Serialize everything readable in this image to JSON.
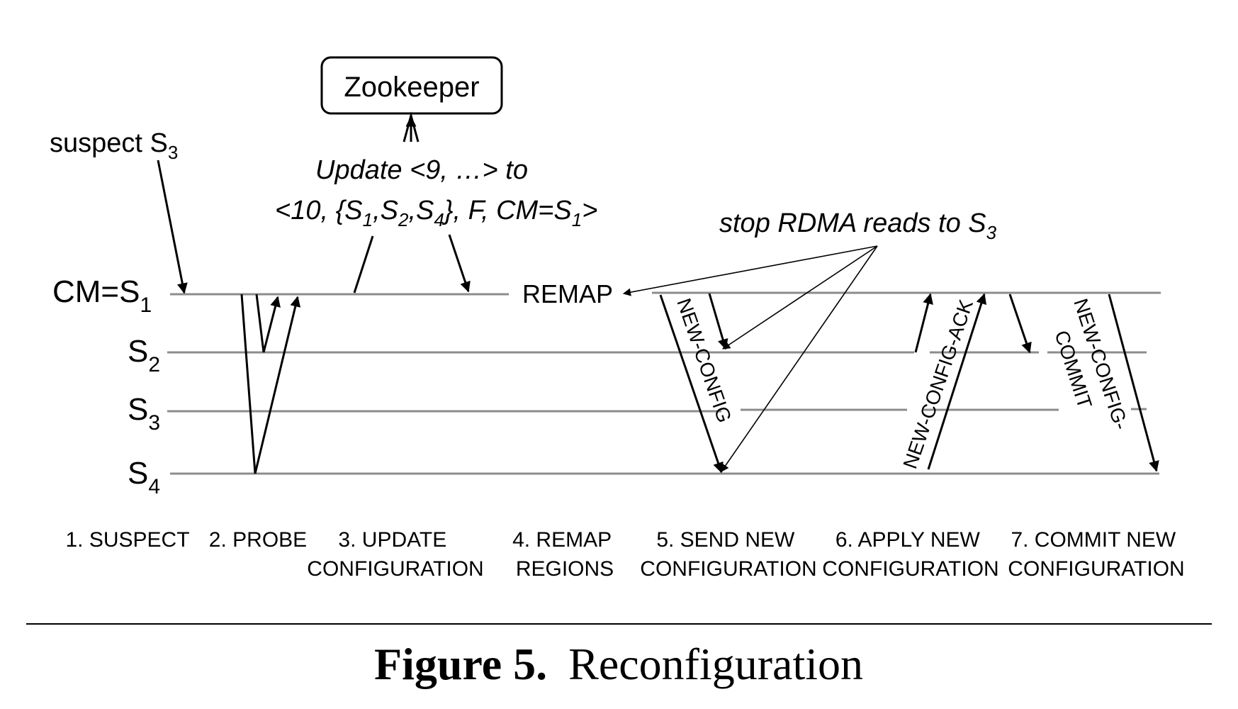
{
  "diagram": {
    "zookeeper": "Zookeeper",
    "suspect": {
      "text": "suspect S",
      "sub": "3"
    },
    "update": {
      "line1": "Update <9, …> to",
      "line2_a": "<10, {S",
      "line2_b": ",S",
      "line2_c": ",S",
      "line2_d": "}, F, CM=S",
      "line2_e": ">",
      "sub1": "1",
      "sub2": "2",
      "sub4": "4",
      "subcm": "1"
    },
    "stop_rdma": {
      "text": "stop RDMA reads to S",
      "sub": "3"
    },
    "remap": "REMAP",
    "messages": {
      "new_config": "NEW-CONFIG",
      "new_config_ack": "NEW-CONFIG-ACK",
      "new_config_commit_1": "NEW-CONFIG-",
      "new_config_commit_2": "COMMIT"
    },
    "servers": [
      {
        "label": "CM=S",
        "sub": "1"
      },
      {
        "label": "S",
        "sub": "2"
      },
      {
        "label": "S",
        "sub": "3"
      },
      {
        "label": "S",
        "sub": "4"
      }
    ],
    "phases": [
      {
        "line1": "1. SUSPECT",
        "line2": ""
      },
      {
        "line1": "2. PROBE",
        "line2": ""
      },
      {
        "line1": "3. UPDATE",
        "line2": "CONFIGURATION"
      },
      {
        "line1": "4. REMAP",
        "line2": "REGIONS"
      },
      {
        "line1": "5. SEND NEW",
        "line2": "CONFIGURATION"
      },
      {
        "line1": "6. APPLY NEW",
        "line2": "CONFIGURATION"
      },
      {
        "line1": "7. COMMIT NEW",
        "line2": "CONFIGURATION"
      }
    ]
  },
  "caption": {
    "figure": "Figure 5.",
    "title": "Reconfiguration"
  }
}
